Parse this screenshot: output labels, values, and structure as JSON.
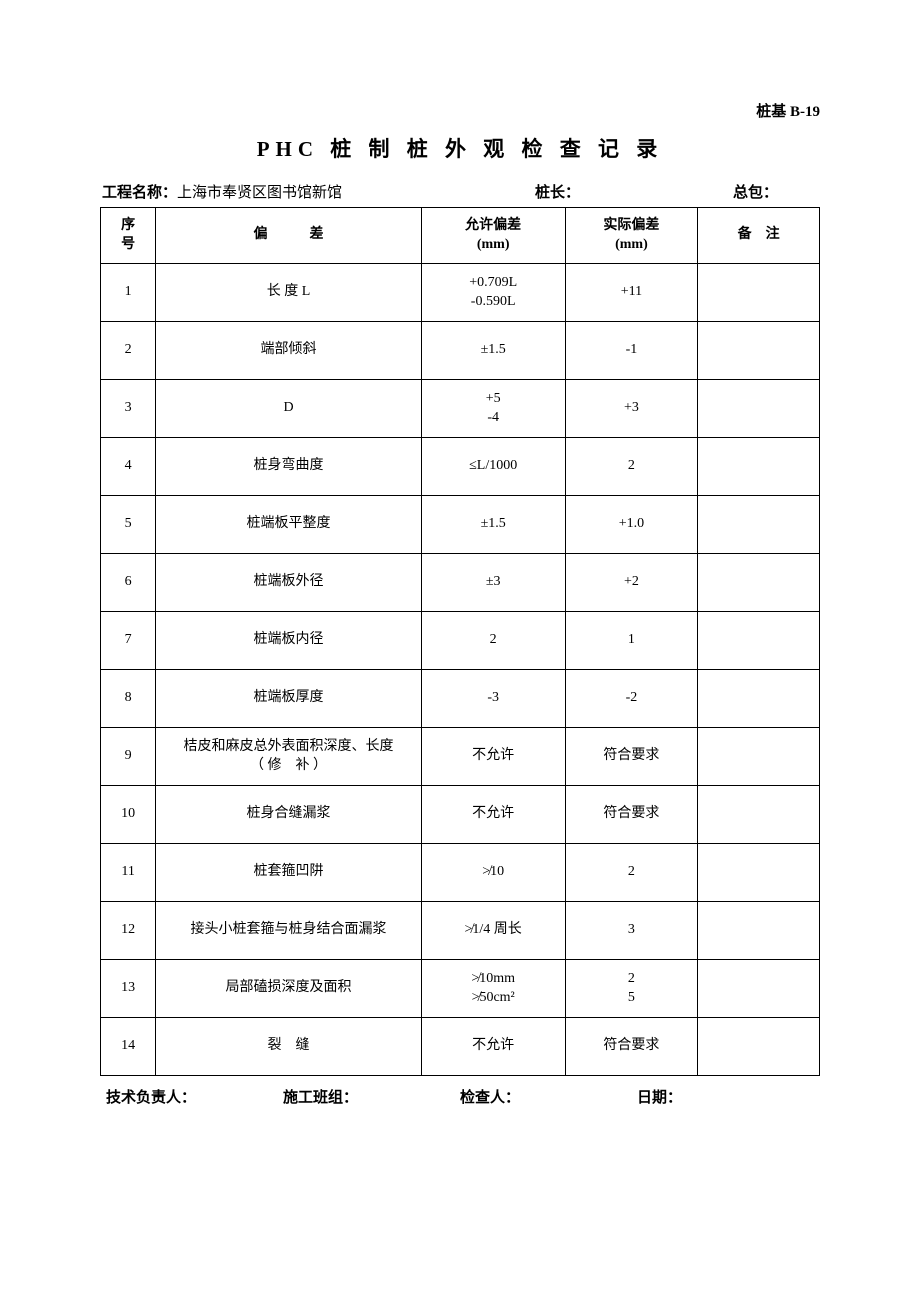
{
  "doc": {
    "code": "桩基 B-19",
    "title": "PHC 桩 制 桩 外 观 检 查 记 录",
    "project_label": "工程名称：",
    "project_value": "上海市奉贤区图书馆新馆",
    "pile_length_label": "桩长：",
    "contractor_label": "总包："
  },
  "table": {
    "headers": {
      "idx_l1": "序",
      "idx_l2": "号",
      "item": "偏　　　差",
      "allow_l1": "允许偏差",
      "allow_l2": "(mm)",
      "actual_l1": "实际偏差",
      "actual_l2": "(mm)",
      "note": "备　注"
    },
    "rows": [
      {
        "idx": "1",
        "item": "长 度 L",
        "allow_l1": "+0.709L",
        "allow_l2": "-0.590L",
        "actual": "+11",
        "note": ""
      },
      {
        "idx": "2",
        "item": "端部倾斜",
        "allow_l1": "±1.5",
        "allow_l2": "",
        "actual": "-1",
        "note": ""
      },
      {
        "idx": "3",
        "item": "D",
        "allow_l1": "+5",
        "allow_l2": "-4",
        "actual": "+3",
        "note": ""
      },
      {
        "idx": "4",
        "item": "桩身弯曲度",
        "allow_l1": "≤L/1000",
        "allow_l2": "",
        "actual": "2",
        "note": ""
      },
      {
        "idx": "5",
        "item": "桩端板平整度",
        "allow_l1": "±1.5",
        "allow_l2": "",
        "actual": "+1.0",
        "note": ""
      },
      {
        "idx": "6",
        "item": "桩端板外径",
        "allow_l1": "±3",
        "allow_l2": "",
        "actual": "+2",
        "note": ""
      },
      {
        "idx": "7",
        "item": "桩端板内径",
        "allow_l1": "2",
        "allow_l2": "",
        "actual": "1",
        "note": ""
      },
      {
        "idx": "8",
        "item": "桩端板厚度",
        "allow_l1": "-3",
        "allow_l2": "",
        "actual": "-2",
        "note": ""
      },
      {
        "idx": "9",
        "item_l1": "桔皮和麻皮总外表面积深度、长度",
        "item_l2": "（ 修　补 ）",
        "allow_l1": "不允许",
        "allow_l2": "",
        "actual": "符合要求",
        "note": ""
      },
      {
        "idx": "10",
        "item": "桩身合缝漏浆",
        "allow_l1": "不允许",
        "allow_l2": "",
        "actual": "符合要求",
        "note": ""
      },
      {
        "idx": "11",
        "item": "桩套箍凹阱",
        "allow_l1": "≯10",
        "allow_l2": "",
        "actual": "2",
        "note": ""
      },
      {
        "idx": "12",
        "item": "接头小桩套箍与桩身结合面漏浆",
        "allow_l1": "≯1/4 周长",
        "allow_l2": "",
        "actual": "3",
        "note": ""
      },
      {
        "idx": "13",
        "item": "局部磕损深度及面积",
        "allow_l1": "≯10mm",
        "allow_l2": "≯50cm²",
        "actual_l1": "2",
        "actual_l2": "5",
        "note": ""
      },
      {
        "idx": "14",
        "item": "裂　缝",
        "allow_l1": "不允许",
        "allow_l2": "",
        "actual": "符合要求",
        "note": ""
      }
    ]
  },
  "footer": {
    "tech": "技术负责人：",
    "team": "施工班组：",
    "inspector": "检查人：",
    "date": "日期："
  },
  "style": {
    "bg": "#ffffff",
    "border": "#000000",
    "text": "#000000"
  }
}
